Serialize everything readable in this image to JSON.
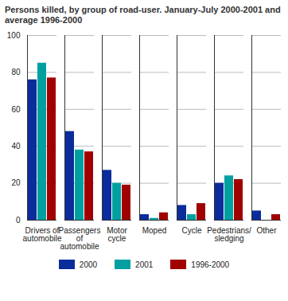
{
  "chart_data": {
    "type": "bar",
    "title": "Persons killed, by group of road-user. January-July 2000-2001 and average 1996-2000",
    "categories": [
      "Drivers of automobile",
      "Passengers of automobile",
      "Motor cycle",
      "Moped",
      "Cycle",
      "Pedestrians/ sledging",
      "Other"
    ],
    "series": [
      {
        "name": "2000",
        "color": "#0b2c9b",
        "values": [
          76,
          48,
          27,
          3,
          8,
          20,
          5
        ]
      },
      {
        "name": "2001",
        "color": "#00a0a0",
        "values": [
          85,
          38,
          20,
          1,
          3,
          24,
          0
        ]
      },
      {
        "name": "1996-2000",
        "color": "#a00000",
        "values": [
          77,
          37,
          19,
          4,
          9,
          22,
          3
        ]
      }
    ],
    "ylim": [
      0,
      100
    ],
    "yticks": [
      0,
      20,
      40,
      60,
      80,
      100
    ],
    "grid": true,
    "legend": "bottom"
  }
}
